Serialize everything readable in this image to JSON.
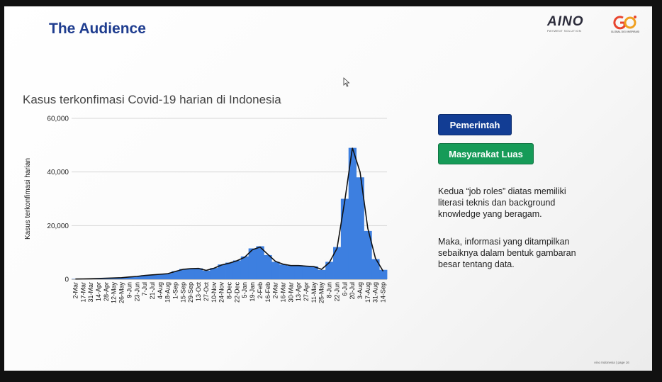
{
  "slide": {
    "title": "The Audience",
    "logos": {
      "aino_word": "AINO",
      "aino_tagline": "PAYMENT SOLUTION",
      "gdi_caption": "GLOBAL DIGI INSPIRASI"
    },
    "buttons": {
      "pemerintah": "Pemerintah",
      "masyarakat": "Masyarakat Luas"
    },
    "paragraphs": [
      "Kedua “job roles” diatas memiliki literasi teknis dan background knowledge yang beragam.",
      "Maka, informasi yang ditampilkan sebaiknya dalam bentuk gambaran besar tentang data."
    ],
    "footer": "Aino Indonesia | page 16"
  },
  "colors": {
    "title": "#1f3d8f",
    "bar_fill": "#3d7fe0",
    "avg_line": "#111111",
    "btn_pemerintah": "#123d94",
    "btn_masyarakat": "#169b58"
  },
  "chart_data": {
    "type": "bar",
    "title": "Kasus terkonfimasi Covid-19 harian di Indonesia",
    "ylabel": "Kasus terkonfimasi harian",
    "xlabel": "",
    "ylim": [
      0,
      60000
    ],
    "y_ticks": [
      0,
      20000,
      40000,
      60000
    ],
    "y_tick_labels": [
      "0",
      "20,000",
      "40,000",
      "60,000"
    ],
    "grid": true,
    "legend": "none",
    "categories": [
      "2-Mar",
      "17-Mar",
      "31-Mar",
      "14-Apr",
      "28-Apr",
      "12-May",
      "26-May",
      "9-Jun",
      "23-Jun",
      "7-Jul",
      "21-Jul",
      "4-Aug",
      "18-Aug",
      "1-Sep",
      "15-Sep",
      "29-Sep",
      "13-Oct",
      "27-Oct",
      "10-Nov",
      "24-Nov",
      "8-Dec",
      "22-Dec",
      "5-Jan",
      "19-Jan",
      "2-Feb",
      "16-Feb",
      "2-Mar",
      "16-Mar",
      "30-Mar",
      "13-Apr",
      "27-Apr",
      "11-May",
      "25-May",
      "8-Jun",
      "22-Jun",
      "6-Jul",
      "20-Jul",
      "3-Aug",
      "17-Aug",
      "31-Aug",
      "14-Sep"
    ],
    "series": [
      {
        "values": [
          100,
          150,
          200,
          350,
          400,
          500,
          600,
          900,
          1100,
          1500,
          1700,
          1900,
          2100,
          3000,
          3800,
          4000,
          4100,
          3200,
          4200,
          5500,
          6200,
          7000,
          8500,
          11500,
          12300,
          9000,
          6500,
          5500,
          5000,
          5200,
          5000,
          4800,
          3500,
          6500,
          12000,
          30000,
          49000,
          38000,
          18000,
          7500,
          3500
        ]
      },
      {
        "values": [
          80,
          130,
          180,
          300,
          380,
          480,
          580,
          850,
          1050,
          1400,
          1650,
          1850,
          2050,
          2900,
          3700,
          3950,
          4050,
          3300,
          4100,
          5300,
          6000,
          6900,
          8200,
          11000,
          12000,
          9300,
          6700,
          5600,
          5100,
          5100,
          4900,
          4700,
          3700,
          6200,
          11500,
          29000,
          49000,
          40000,
          19000,
          7800,
          3000
        ]
      }
    ]
  }
}
